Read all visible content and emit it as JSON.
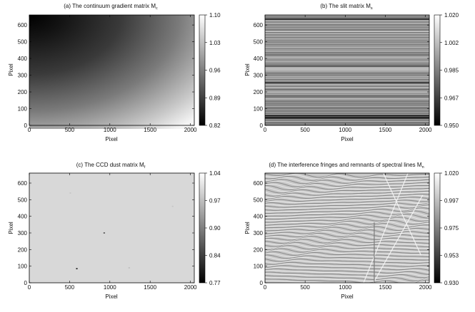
{
  "chart_data": [
    {
      "type": "heatmap",
      "title": "(a)  The continuum gradient matrix M",
      "title_subscript": "c",
      "xlabel": "Pixel",
      "ylabel": "Pixel",
      "xlim": [
        0,
        2048
      ],
      "ylim": [
        0,
        660
      ],
      "xticks": [
        0,
        500,
        1000,
        1500,
        2000
      ],
      "yticks": [
        0,
        100,
        200,
        300,
        400,
        500,
        600
      ],
      "colorbar": {
        "min": 0.82,
        "max": 1.1,
        "ticks": [
          "1.10",
          "1.03",
          "0.96",
          "0.89",
          "0.82"
        ]
      },
      "colormap": "gray",
      "pattern": "smooth diagonal gradient, dark (0.82) at upper-left rising to bright (1.10) at lower-right"
    },
    {
      "type": "heatmap",
      "title": "(b)  The slit matrix M",
      "title_subscript": "s",
      "xlabel": "Pixel",
      "ylabel": "Pixel",
      "xlim": [
        0,
        2048
      ],
      "ylim": [
        0,
        660
      ],
      "xticks": [
        0,
        500,
        1000,
        1500,
        2000
      ],
      "yticks": [
        0,
        100,
        200,
        300,
        400,
        500,
        600
      ],
      "colorbar": {
        "min": 0.95,
        "max": 1.02,
        "ticks": [
          "1.020",
          "1.002",
          "0.985",
          "0.967",
          "0.950"
        ]
      },
      "colormap": "gray",
      "dark_rows": [
        {
          "y": 45,
          "value": 0.955
        },
        {
          "y": 58,
          "value": 0.962
        },
        {
          "y": 255,
          "value": 0.968
        },
        {
          "y": 355,
          "value": 0.975
        },
        {
          "y": 635,
          "value": 0.965
        }
      ],
      "pattern": "horizontal stripes, constant along x"
    },
    {
      "type": "heatmap",
      "title": "(c)  The CCD dust matrix M",
      "title_subscript": "f",
      "xlabel": "Pixel",
      "ylabel": "Pixel",
      "xlim": [
        0,
        2048
      ],
      "ylim": [
        0,
        660
      ],
      "xticks": [
        0,
        500,
        1000,
        1500,
        2000
      ],
      "yticks": [
        0,
        100,
        200,
        300,
        400,
        500,
        600
      ],
      "colorbar": {
        "min": 0.77,
        "max": 1.04,
        "ticks": [
          "1.04",
          "0.97",
          "0.90",
          "0.84",
          "0.77"
        ]
      },
      "colormap": "gray",
      "background_value": 1.0,
      "dust_specks": [
        {
          "x": 590,
          "y": 85,
          "value": 0.8
        },
        {
          "x": 930,
          "y": 300,
          "value": 0.85
        },
        {
          "x": 1240,
          "y": 90,
          "value": 0.97
        },
        {
          "x": 510,
          "y": 540,
          "value": 0.98
        },
        {
          "x": 1780,
          "y": 460,
          "value": 0.98
        }
      ]
    },
    {
      "type": "heatmap",
      "title": "(d)  The interference fringes and remnants of spectral lines M",
      "title_subscript": "n",
      "xlabel": "Pixel",
      "ylabel": "Pixel",
      "xlim": [
        0,
        2048
      ],
      "ylim": [
        0,
        660
      ],
      "xticks": [
        0,
        500,
        1000,
        1500,
        2000
      ],
      "yticks": [
        0,
        100,
        200,
        300,
        400,
        500,
        600
      ],
      "colorbar": {
        "min": 0.93,
        "max": 1.02,
        "ticks": [
          "1.020",
          "0.997",
          "0.975",
          "0.953",
          "0.930"
        ]
      },
      "colormap": "gray",
      "pattern": "wavy horizontal interference fringes with diagonal remnant spectral lines near x=1350-1500"
    }
  ]
}
